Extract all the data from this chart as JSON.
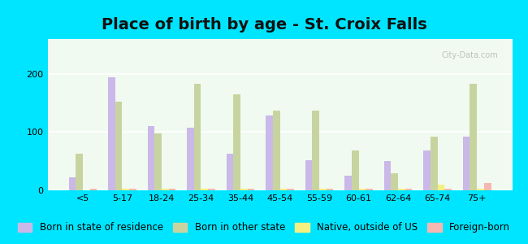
{
  "title": "Place of birth by age - St. Croix Falls",
  "categories": [
    "<5",
    "5-17",
    "18-24",
    "25-34",
    "35-44",
    "45-54",
    "55-59",
    "60-61",
    "62-64",
    "65-74",
    "75+"
  ],
  "series": {
    "Born in state of residence": [
      22,
      195,
      110,
      107,
      63,
      128,
      52,
      25,
      50,
      68,
      92
    ],
    "Born in other state": [
      63,
      152,
      98,
      183,
      165,
      137,
      137,
      68,
      30,
      92,
      183
    ],
    "Native, outside of US": [
      0,
      3,
      3,
      3,
      3,
      3,
      3,
      3,
      3,
      10,
      3
    ],
    "Foreign-born": [
      3,
      3,
      3,
      3,
      3,
      3,
      3,
      3,
      3,
      3,
      13
    ]
  },
  "colors": {
    "Born in state of residence": "#c9b8e8",
    "Born in other state": "#c8d4a0",
    "Native, outside of US": "#f5f080",
    "Foreign-born": "#f5b8b0"
  },
  "bar_width": 0.18,
  "ylim": [
    0,
    260
  ],
  "yticks": [
    0,
    100,
    200
  ],
  "bg_color": "#f0faf0",
  "outer_bg": "#00e5ff",
  "grid_color": "#ffffff",
  "title_fontsize": 14,
  "legend_fontsize": 8.5,
  "tick_fontsize": 8
}
